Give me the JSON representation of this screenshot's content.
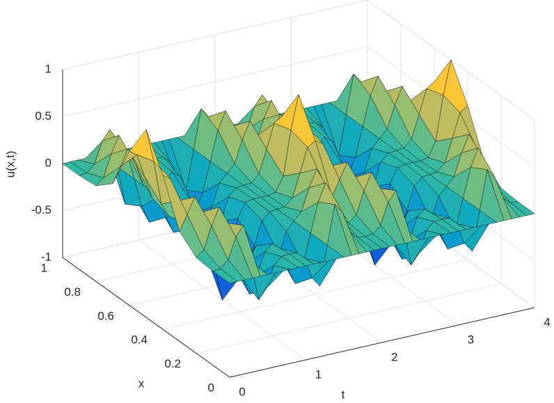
{
  "chart_data": {
    "type": "surface",
    "tlabel": "t",
    "xlabel": "x",
    "zlabel": "u(x,t)",
    "t": [
      0,
      0.1,
      0.2,
      0.3,
      0.4,
      0.5,
      0.6,
      0.7,
      0.8,
      0.9,
      1,
      1.1,
      1.2,
      1.3,
      1.4,
      1.5,
      1.6,
      1.7,
      1.8,
      1.9,
      2,
      2.1,
      2.2,
      2.3,
      2.4,
      2.5,
      2.6,
      2.7,
      2.8,
      2.9,
      3,
      3.1,
      3.2,
      3.3,
      3.4,
      3.5,
      3.6,
      3.7,
      3.8,
      3.9,
      4
    ],
    "x": [
      0,
      0.1,
      0.2,
      0.3,
      0.4,
      0.5,
      0.6,
      0.7,
      0.8,
      0.9,
      1
    ],
    "z": [
      [
        0,
        0,
        0.018,
        0.169,
        0.641,
        1,
        0.641,
        0.169,
        0.018,
        0,
        0
      ],
      [
        0,
        0.009,
        0.085,
        0.33,
        0.585,
        0.642,
        0.585,
        0.33,
        0.085,
        0.009,
        0
      ],
      [
        0,
        0.085,
        0.321,
        0.5,
        0.33,
        0.17,
        0.33,
        0.5,
        0.321,
        0.085,
        0
      ],
      [
        0,
        0.312,
        0.5,
        0.321,
        0.085,
        0.018,
        0.085,
        0.321,
        0.5,
        0.312,
        0
      ],
      [
        0,
        0.415,
        0.312,
        0.085,
        0.009,
        0,
        0.009,
        0.085,
        0.312,
        0.415,
        0
      ],
      [
        0,
        0,
        0,
        0,
        0,
        0,
        0,
        0,
        0,
        0,
        0
      ],
      [
        0,
        -0.415,
        -0.312,
        -0.085,
        -0.009,
        0,
        -0.009,
        -0.085,
        -0.312,
        -0.415,
        0
      ],
      [
        0,
        -0.312,
        -0.5,
        -0.321,
        -0.085,
        -0.018,
        -0.085,
        -0.321,
        -0.5,
        -0.312,
        0
      ],
      [
        0,
        -0.085,
        -0.321,
        -0.5,
        -0.33,
        -0.17,
        -0.33,
        -0.5,
        -0.321,
        -0.085,
        0
      ],
      [
        0,
        -0.009,
        -0.085,
        -0.33,
        -0.585,
        -0.642,
        -0.585,
        -0.33,
        -0.085,
        -0.009,
        0
      ],
      [
        0,
        0,
        -0.018,
        -0.169,
        -0.641,
        -1,
        -0.641,
        -0.169,
        -0.018,
        0,
        0
      ],
      [
        0,
        -0.009,
        -0.085,
        -0.33,
        -0.585,
        -0.642,
        -0.585,
        -0.33,
        -0.085,
        -0.009,
        0
      ],
      [
        0,
        -0.085,
        -0.321,
        -0.5,
        -0.33,
        -0.17,
        -0.33,
        -0.5,
        -0.321,
        -0.085,
        0
      ],
      [
        0,
        -0.312,
        -0.5,
        -0.321,
        -0.085,
        -0.018,
        -0.085,
        -0.321,
        -0.5,
        -0.312,
        0
      ],
      [
        0,
        -0.415,
        -0.312,
        -0.085,
        -0.009,
        0,
        -0.009,
        -0.085,
        -0.312,
        -0.415,
        0
      ],
      [
        0,
        0,
        0,
        0,
        0,
        0,
        0,
        0,
        0,
        0,
        0
      ],
      [
        0,
        0.415,
        0.312,
        0.085,
        0.009,
        0,
        0.009,
        0.085,
        0.312,
        0.415,
        0
      ],
      [
        0,
        0.312,
        0.5,
        0.321,
        0.085,
        0.018,
        0.085,
        0.321,
        0.5,
        0.312,
        0
      ],
      [
        0,
        0.085,
        0.321,
        0.5,
        0.33,
        0.17,
        0.33,
        0.5,
        0.321,
        0.085,
        0
      ],
      [
        0,
        0.009,
        0.085,
        0.33,
        0.585,
        0.642,
        0.585,
        0.33,
        0.085,
        0.009,
        0
      ],
      [
        0,
        0,
        0.018,
        0.169,
        0.641,
        1,
        0.641,
        0.169,
        0.018,
        0,
        0
      ],
      [
        0,
        0.009,
        0.085,
        0.33,
        0.585,
        0.642,
        0.585,
        0.33,
        0.085,
        0.009,
        0
      ],
      [
        0,
        0.085,
        0.321,
        0.5,
        0.33,
        0.17,
        0.33,
        0.5,
        0.321,
        0.085,
        0
      ],
      [
        0,
        0.312,
        0.5,
        0.321,
        0.085,
        0.018,
        0.085,
        0.321,
        0.5,
        0.312,
        0
      ],
      [
        0,
        0.415,
        0.312,
        0.085,
        0.009,
        0,
        0.009,
        0.085,
        0.312,
        0.415,
        0
      ],
      [
        0,
        0,
        0,
        0,
        0,
        0,
        0,
        0,
        0,
        0,
        0
      ],
      [
        0,
        -0.415,
        -0.312,
        -0.085,
        -0.009,
        0,
        -0.009,
        -0.085,
        -0.312,
        -0.415,
        0
      ],
      [
        0,
        -0.312,
        -0.5,
        -0.321,
        -0.085,
        -0.018,
        -0.085,
        -0.321,
        -0.5,
        -0.312,
        0
      ],
      [
        0,
        -0.085,
        -0.321,
        -0.5,
        -0.33,
        -0.17,
        -0.33,
        -0.5,
        -0.321,
        -0.085,
        0
      ],
      [
        0,
        -0.009,
        -0.085,
        -0.33,
        -0.585,
        -0.642,
        -0.585,
        -0.33,
        -0.085,
        -0.009,
        0
      ],
      [
        0,
        0,
        -0.018,
        -0.169,
        -0.641,
        -1,
        -0.641,
        -0.169,
        -0.018,
        0,
        0
      ],
      [
        0,
        -0.009,
        -0.085,
        -0.33,
        -0.585,
        -0.642,
        -0.585,
        -0.33,
        -0.085,
        -0.009,
        0
      ],
      [
        0,
        -0.085,
        -0.321,
        -0.5,
        -0.33,
        -0.17,
        -0.33,
        -0.5,
        -0.321,
        -0.085,
        0
      ],
      [
        0,
        -0.312,
        -0.5,
        -0.321,
        -0.085,
        -0.018,
        -0.085,
        -0.321,
        -0.5,
        -0.312,
        0
      ],
      [
        0,
        -0.415,
        -0.312,
        -0.085,
        -0.009,
        0,
        -0.009,
        -0.085,
        -0.312,
        -0.415,
        0
      ],
      [
        0,
        0,
        0,
        0,
        0,
        0,
        0,
        0,
        0,
        0,
        0
      ],
      [
        0,
        0.415,
        0.312,
        0.085,
        0.009,
        0,
        0.009,
        0.085,
        0.312,
        0.415,
        0
      ],
      [
        0,
        0.312,
        0.5,
        0.321,
        0.085,
        0.018,
        0.085,
        0.321,
        0.5,
        0.312,
        0
      ],
      [
        0,
        0.085,
        0.321,
        0.5,
        0.33,
        0.17,
        0.33,
        0.5,
        0.321,
        0.085,
        0
      ],
      [
        0,
        0.009,
        0.085,
        0.33,
        0.585,
        0.642,
        0.585,
        0.33,
        0.085,
        0.009,
        0
      ],
      [
        0,
        0,
        0.018,
        0.169,
        0.641,
        1,
        0.641,
        0.169,
        0.018,
        0,
        0
      ]
    ],
    "tlim": [
      0,
      4
    ],
    "tticks": [
      0,
      1,
      2,
      3,
      4
    ],
    "xlim": [
      0,
      1
    ],
    "xticks": [
      0,
      0.2,
      0.4,
      0.6,
      0.8,
      1
    ],
    "zlim": [
      -1,
      1
    ],
    "zticks": [
      -1,
      -0.5,
      0,
      0.5,
      1
    ],
    "grid": true,
    "colormap": [
      "#352a87",
      "#0f5cdd",
      "#1481d6",
      "#06a4ca",
      "#2eb7a4",
      "#87bf77",
      "#d1bb59",
      "#fec832",
      "#f9fb0e"
    ],
    "edge_color": "#000000"
  }
}
